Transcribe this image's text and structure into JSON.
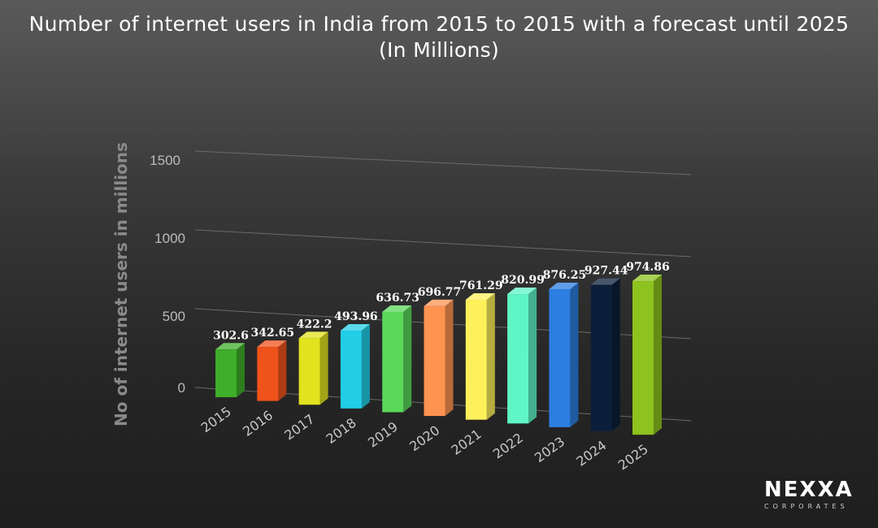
{
  "chart_data": {
    "type": "bar",
    "title": "Number of internet users in India from 2015 to 2015 with a forecast until 2025 (In Millions)",
    "xlabel": "",
    "ylabel": "No of internet users in millions",
    "categories": [
      "2015",
      "2016",
      "2017",
      "2018",
      "2019",
      "2020",
      "2021",
      "2022",
      "2023",
      "2024",
      "2025"
    ],
    "values": [
      302.6,
      342.65,
      422.2,
      493.96,
      636.73,
      696.77,
      761.29,
      820.99,
      876.25,
      927.44,
      974.86
    ],
    "value_labels": [
      "302.6",
      "342.65",
      "422.2",
      "493.96",
      "636.73",
      "696.77",
      "761.29",
      "820.99",
      "876.25",
      "927.44",
      "974.86"
    ],
    "colors": [
      "#3fae2a",
      "#f0521b",
      "#e2e21e",
      "#22cde6",
      "#5ad85a",
      "#ff9350",
      "#fdf05a",
      "#5ff5c5",
      "#2c7ee0",
      "#0b1f3a",
      "#8ec21e"
    ],
    "yticks": [
      "0",
      "500",
      "1000",
      "1500"
    ],
    "ylim": [
      0,
      1500
    ],
    "grid": true,
    "legend": "none"
  },
  "logo": {
    "name": "NEXXA",
    "tagline": "CORPORATES"
  }
}
